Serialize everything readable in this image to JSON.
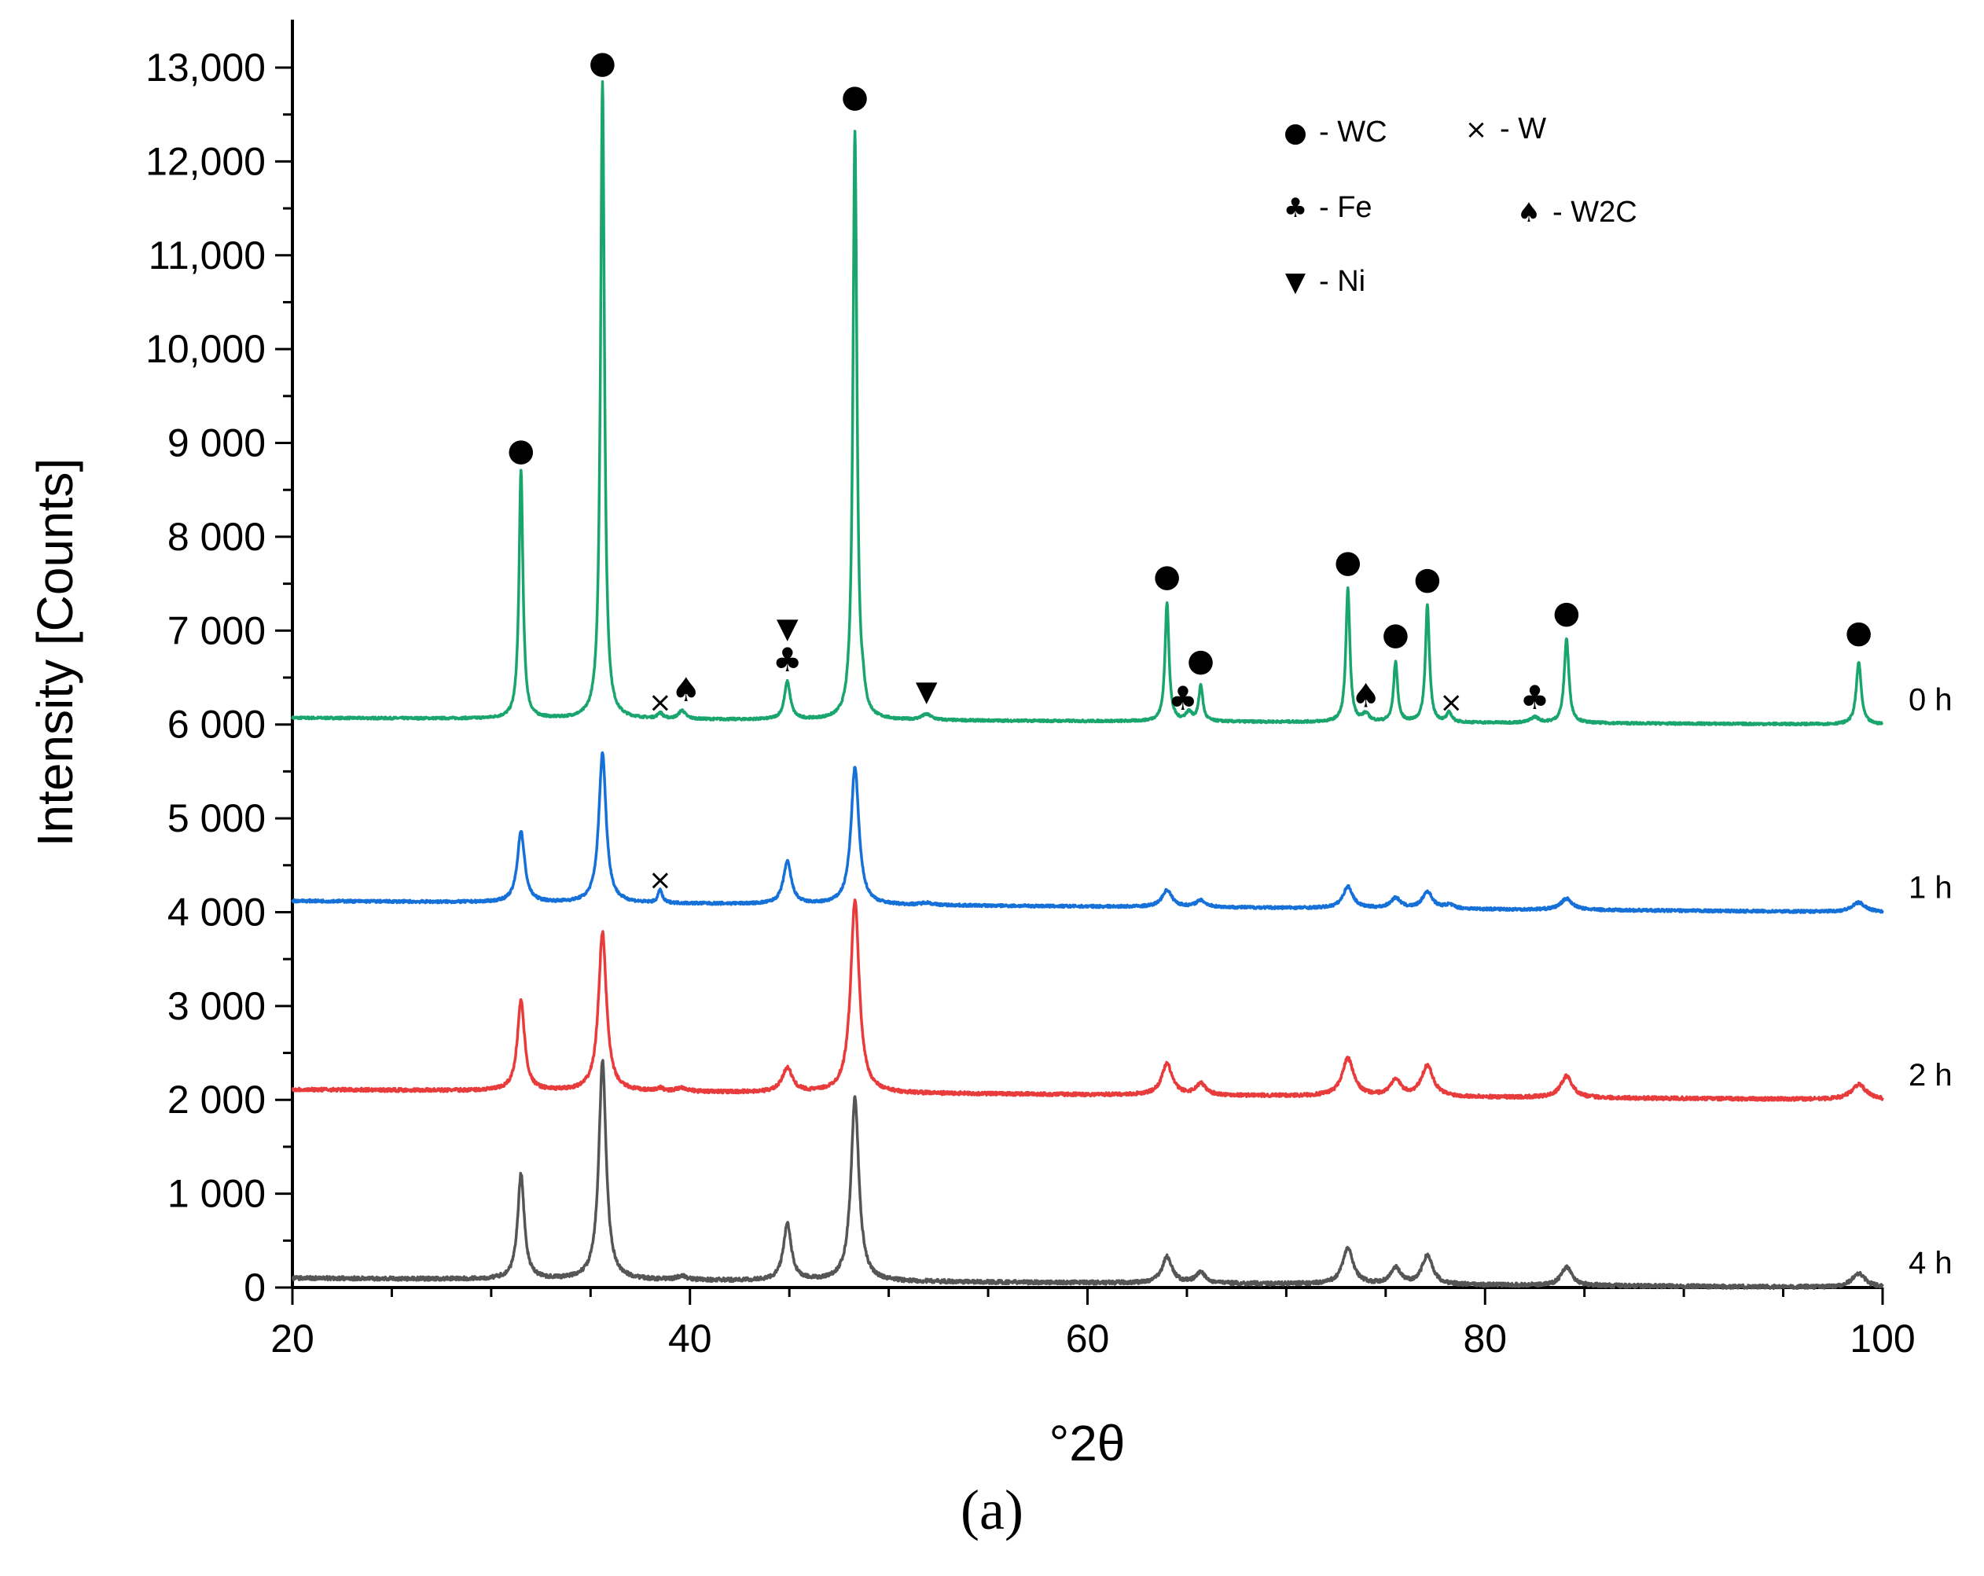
{
  "chart_data": {
    "type": "line",
    "title": "",
    "xlabel": "°2θ",
    "ylabel": "Intensity [Counts]",
    "xlim": [
      20,
      100
    ],
    "ylim": [
      0,
      13500
    ],
    "x_ticks": [
      20,
      40,
      60,
      80,
      100
    ],
    "x_tick_labels": [
      "20",
      "40",
      "60",
      "80",
      "100"
    ],
    "y_ticks": [
      0,
      1000,
      2000,
      3000,
      4000,
      5000,
      6000,
      7000,
      8000,
      9000,
      10000,
      11000,
      12000,
      13000
    ],
    "y_tick_labels": [
      "0",
      "1 000",
      "2 000",
      "3 000",
      "4 000",
      "5 000",
      "6 000",
      "7 000",
      "8 000",
      "9 000",
      "10,000",
      "11,000",
      "12,000",
      "13,000"
    ],
    "series": [
      {
        "name": "0 h",
        "color": "#1aa56e",
        "baseline": 6000,
        "base_start": 6070,
        "noise": 12,
        "peaks": [
          [
            31.5,
            2650,
            0.12
          ],
          [
            35.6,
            6800,
            0.12
          ],
          [
            38.5,
            60,
            0.15
          ],
          [
            39.6,
            90,
            0.2
          ],
          [
            44.9,
            400,
            0.18
          ],
          [
            48.3,
            6270,
            0.12
          ],
          [
            48.7,
            150,
            0.12
          ],
          [
            51.9,
            60,
            0.3
          ],
          [
            64.0,
            1260,
            0.12
          ],
          [
            65.1,
            90,
            0.2
          ],
          [
            65.7,
            380,
            0.12
          ],
          [
            73.1,
            1420,
            0.12
          ],
          [
            74.0,
            80,
            0.2
          ],
          [
            75.5,
            640,
            0.12
          ],
          [
            77.1,
            1260,
            0.12
          ],
          [
            78.2,
            100,
            0.15
          ],
          [
            82.5,
            60,
            0.25
          ],
          [
            84.1,
            900,
            0.14
          ],
          [
            98.8,
            660,
            0.15
          ]
        ]
      },
      {
        "name": "1 h",
        "color": "#1570d8",
        "baseline": 4000,
        "base_start": 4120,
        "noise": 14,
        "peaks": [
          [
            31.5,
            760,
            0.22
          ],
          [
            35.6,
            1600,
            0.22
          ],
          [
            38.5,
            140,
            0.12
          ],
          [
            44.9,
            450,
            0.24
          ],
          [
            48.3,
            1460,
            0.24
          ],
          [
            51.9,
            25,
            0.3
          ],
          [
            64.0,
            180,
            0.3
          ],
          [
            65.7,
            70,
            0.3
          ],
          [
            73.1,
            230,
            0.3
          ],
          [
            75.5,
            110,
            0.3
          ],
          [
            77.1,
            180,
            0.3
          ],
          [
            78.2,
            40,
            0.3
          ],
          [
            84.1,
            120,
            0.35
          ],
          [
            98.8,
            100,
            0.4
          ]
        ]
      },
      {
        "name": "2 h",
        "color": "#e83c3c",
        "baseline": 2000,
        "base_start": 2110,
        "noise": 18,
        "peaks": [
          [
            31.5,
            960,
            0.22
          ],
          [
            35.6,
            1700,
            0.24
          ],
          [
            38.5,
            30,
            0.2
          ],
          [
            39.6,
            40,
            0.3
          ],
          [
            44.9,
            260,
            0.3
          ],
          [
            48.3,
            2050,
            0.26
          ],
          [
            64.0,
            330,
            0.32
          ],
          [
            65.7,
            120,
            0.3
          ],
          [
            73.1,
            400,
            0.35
          ],
          [
            75.5,
            180,
            0.3
          ],
          [
            77.1,
            330,
            0.35
          ],
          [
            84.1,
            230,
            0.35
          ],
          [
            98.8,
            160,
            0.45
          ]
        ]
      },
      {
        "name": "4 h",
        "color": "#555555",
        "baseline": 0,
        "base_start": 100,
        "noise": 20,
        "peaks": [
          [
            31.5,
            1120,
            0.2
          ],
          [
            35.6,
            2340,
            0.22
          ],
          [
            39.6,
            40,
            0.3
          ],
          [
            44.9,
            600,
            0.24
          ],
          [
            48.3,
            1950,
            0.24
          ],
          [
            64.0,
            280,
            0.3
          ],
          [
            65.7,
            110,
            0.3
          ],
          [
            73.1,
            380,
            0.32
          ],
          [
            75.5,
            170,
            0.3
          ],
          [
            77.1,
            310,
            0.32
          ],
          [
            84.1,
            200,
            0.32
          ],
          [
            98.8,
            150,
            0.4
          ]
        ]
      }
    ],
    "legend": {
      "placement": "top-right",
      "entries": [
        {
          "symbol": "●",
          "label": "- WC"
        },
        {
          "symbol": "×",
          "label": "- W"
        },
        {
          "symbol": "♣",
          "label": "- Fe"
        },
        {
          "symbol": "♠",
          "label": "- W2C"
        },
        {
          "symbol": "▼",
          "label": "- Ni"
        }
      ]
    },
    "annotations": [
      {
        "symbol": "●",
        "x": 31.5,
        "y": 8930
      },
      {
        "symbol": "●",
        "x": 35.6,
        "y": 13060
      },
      {
        "symbol": "●",
        "x": 48.3,
        "y": 12700
      },
      {
        "symbol": "●",
        "x": 64.0,
        "y": 7590
      },
      {
        "symbol": "●",
        "x": 65.7,
        "y": 6690
      },
      {
        "symbol": "●",
        "x": 73.1,
        "y": 7740
      },
      {
        "symbol": "●",
        "x": 75.5,
        "y": 6970
      },
      {
        "symbol": "●",
        "x": 77.1,
        "y": 7560
      },
      {
        "symbol": "●",
        "x": 84.1,
        "y": 7200
      },
      {
        "symbol": "●",
        "x": 98.8,
        "y": 6990
      },
      {
        "symbol": "×",
        "x": 38.5,
        "y": 6240
      },
      {
        "symbol": "♠",
        "x": 39.8,
        "y": 6370
      },
      {
        "symbol": "▼",
        "x": 44.9,
        "y": 7030
      },
      {
        "symbol": "♣",
        "x": 44.9,
        "y": 6690
      },
      {
        "symbol": "▼",
        "x": 51.9,
        "y": 6360
      },
      {
        "symbol": "♣",
        "x": 64.8,
        "y": 6280
      },
      {
        "symbol": "♠",
        "x": 74.0,
        "y": 6310
      },
      {
        "symbol": "×",
        "x": 78.3,
        "y": 6240
      },
      {
        "symbol": "♣",
        "x": 82.5,
        "y": 6290
      },
      {
        "symbol": "×",
        "x": 38.5,
        "y": 4350
      }
    ],
    "caption": "(a)"
  }
}
